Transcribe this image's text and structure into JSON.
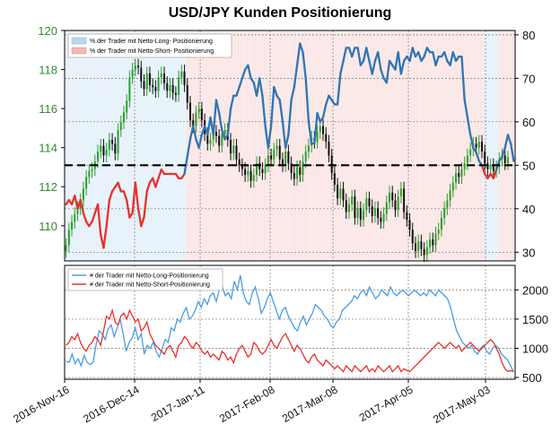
{
  "chart_data": [
    {
      "type": "line",
      "title": "USD/JPY Kunden Positionierung",
      "left_axis": {
        "ticks": [
          "110",
          "112",
          "114",
          "116",
          "118",
          "120"
        ],
        "ylim": [
          108.2,
          120
        ],
        "color": "#2e8b2e"
      },
      "right_axis": {
        "ticks": [
          "30",
          "40",
          "50",
          "60",
          "70",
          "80"
        ],
        "ylim": [
          28,
          81
        ]
      },
      "x_tick_labels": [
        "2016-Nov-16",
        "2016-Dec-14",
        "2017-Jan-11",
        "2017-Feb-08",
        "2017-Mar-08",
        "2017-Apr-05",
        "2017-May-03"
      ],
      "grid": true,
      "legend_position": "top-left",
      "reference_line": 50,
      "legend": [
        {
          "label": "% der Trader mit Netto-Long- Positionierung",
          "color": "#b8d8f0"
        },
        {
          "label": "% der Trader mit Netto-Short- Positionierung",
          "color": "#f4b8b8"
        }
      ],
      "series": [
        {
          "kind": "sentiment_pct",
          "color_long": "#2e75b6",
          "color_short": "#e8302a",
          "values": [
            41,
            42,
            41,
            43,
            40,
            42,
            39,
            37,
            36,
            37,
            39,
            41,
            34,
            31,
            36,
            42,
            44,
            45,
            46,
            44,
            44,
            42,
            38,
            39,
            46,
            40,
            36,
            38,
            44,
            46,
            47,
            45,
            47,
            49,
            48,
            48,
            48,
            48,
            48,
            47,
            47,
            48,
            52,
            56,
            59,
            56,
            54,
            57,
            59,
            57,
            61,
            57,
            65,
            62,
            58,
            56,
            57,
            63,
            66,
            66,
            68,
            70,
            72,
            73,
            70,
            69,
            66,
            70,
            66,
            59,
            54,
            59,
            68,
            66,
            65,
            60,
            54,
            57,
            65,
            68,
            73,
            78,
            76,
            70,
            60,
            55,
            55,
            62,
            60,
            61,
            64,
            66,
            65,
            64,
            64,
            71,
            74,
            77,
            77,
            75,
            77,
            77,
            73,
            74,
            77,
            74,
            71,
            74,
            76,
            72,
            70,
            69,
            74,
            73,
            72,
            76,
            71,
            74,
            75,
            74,
            77,
            75,
            76,
            74,
            75,
            77,
            76,
            76,
            73,
            75,
            75,
            76,
            74,
            73,
            76,
            74,
            75,
            75,
            65,
            61,
            57,
            54,
            53,
            51,
            50,
            48,
            47,
            48,
            47,
            49,
            51,
            52,
            54,
            57,
            55,
            51
          ]
        },
        {
          "kind": "price",
          "name": "USD/JPY",
          "values": [
            109.0,
            109.8,
            110.2,
            110.6,
            110.9,
            111.3,
            111.9,
            112.5,
            112.8,
            112.9,
            113.3,
            113.8,
            114.1,
            113.6,
            113.9,
            114.4,
            114.2,
            113.7,
            114.9,
            115.3,
            115.8,
            116.4,
            117.6,
            118.0,
            118.2,
            118.1,
            117.4,
            117.0,
            117.8,
            117.2,
            117.1,
            116.9,
            117.6,
            117.8,
            117.3,
            116.9,
            117.2,
            116.8,
            116.7,
            117.6,
            117.9,
            117.2,
            116.3,
            115.4,
            115.1,
            115.8,
            116.0,
            115.4,
            114.7,
            114.2,
            114.4,
            114.8,
            114.6,
            114.1,
            114.7,
            114.9,
            114.4,
            113.7,
            114.1,
            113.4,
            113.1,
            112.9,
            112.6,
            112.8,
            112.3,
            112.6,
            113.2,
            112.9,
            112.7,
            113.1,
            113.6,
            113.4,
            113.9,
            114.1,
            113.4,
            113.1,
            113.8,
            113.2,
            112.7,
            112.4,
            113.0,
            112.6,
            113.3,
            113.8,
            114.1,
            114.5,
            114.3,
            114.8,
            115.1,
            114.7,
            114.3,
            113.6,
            112.7,
            112.1,
            111.4,
            111.9,
            111.3,
            110.7,
            111.1,
            111.5,
            110.4,
            110.9,
            110.3,
            110.8,
            111.4,
            111.0,
            110.5,
            110.9,
            110.4,
            110.2,
            110.6,
            111.2,
            111.7,
            111.3,
            110.8,
            111.5,
            111.9,
            110.7,
            110.3,
            109.8,
            109.1,
            108.7,
            109.2,
            108.8,
            108.5,
            108.9,
            109.3,
            109.0,
            109.6,
            109.8,
            110.4,
            110.9,
            111.3,
            111.8,
            112.2,
            112.7,
            112.5,
            112.9,
            113.2,
            113.6,
            113.9,
            114.2,
            114.0,
            114.3,
            113.8,
            113.2,
            112.9,
            113.1,
            112.8,
            113.0,
            113.4,
            113.6,
            113.2,
            113.5
          ]
        }
      ]
    },
    {
      "type": "line",
      "y_axis": {
        "ticks": [
          "500",
          "1000",
          "1500",
          "2000"
        ],
        "ylim": [
          470,
          2420
        ]
      },
      "grid": true,
      "legend_position": "top-left",
      "series": [
        {
          "name": "# der Trader mit Netto-Long-Positionierung",
          "color": "#4a9de0",
          "values": [
            780,
            760,
            900,
            740,
            820,
            700,
            880,
            760,
            720,
            760,
            1070,
            1300,
            1250,
            1150,
            1330,
            1400,
            1200,
            1350,
            1500,
            1250,
            950,
            1100,
            1180,
            1350,
            1150,
            1250,
            900,
            1050,
            1000,
            1100,
            950,
            850,
            1000,
            1150,
            1100,
            1350,
            1300,
            1500,
            1450,
            1600,
            1700,
            1500,
            1550,
            1650,
            1800,
            1700,
            1850,
            1750,
            1900,
            1950,
            1800,
            2000,
            2050,
            1900,
            1950,
            1850,
            2150,
            2000,
            2250,
            1950,
            1800,
            1750,
            1950,
            2050,
            1850,
            1600,
            1700,
            1850,
            1950,
            1800,
            1650,
            1500,
            1650,
            1700,
            1550,
            1450,
            1350,
            1300,
            1450,
            1550,
            1400,
            1500,
            1600,
            1750,
            1700,
            1650,
            1550,
            1500,
            1400,
            1350,
            1450,
            1500,
            1650,
            1700,
            1750,
            1800,
            1900,
            1850,
            1950,
            2000,
            1900,
            2050,
            1950,
            1850,
            1900,
            2000,
            1950,
            1900,
            2050,
            1950,
            1900,
            1950,
            2000,
            1950,
            1900,
            1950,
            2000,
            1950,
            1900,
            1950,
            1900,
            2000,
            1950,
            1900,
            2000,
            1950,
            1900,
            1850,
            1700,
            1500,
            1300,
            1200,
            1100,
            1050,
            1000,
            1050,
            950,
            900,
            1000,
            1050,
            950,
            900,
            1000,
            1050,
            1000,
            900,
            850,
            800,
            700,
            600
          ]
        },
        {
          "name": "# der Trader mit Netto-Short-Positionierung",
          "color": "#e8302a",
          "values": [
            1050,
            1100,
            1200,
            1150,
            1250,
            1100,
            1000,
            950,
            1050,
            1100,
            1200,
            1150,
            1050,
            1300,
            1550,
            1500,
            1650,
            1450,
            1400,
            1550,
            1600,
            1500,
            1650,
            1550,
            1450,
            1500,
            1300,
            1350,
            1450,
            1250,
            1150,
            1050,
            1000,
            950,
            900,
            1000,
            1050,
            950,
            850,
            1050,
            1100,
            1200,
            1150,
            1050,
            1000,
            1100,
            1050,
            950,
            900,
            950,
            850,
            900,
            850,
            800,
            950,
            900,
            800,
            850,
            750,
            900,
            1000,
            1050,
            950,
            850,
            900,
            1100,
            1050,
            950,
            900,
            950,
            1050,
            1150,
            1050,
            1000,
            1100,
            1200,
            1250,
            1150,
            1050,
            950,
            1050,
            1000,
            900,
            800,
            750,
            850,
            900,
            800,
            750,
            700,
            800,
            750,
            700,
            650,
            700,
            650,
            600,
            700,
            650,
            600,
            700,
            650,
            600,
            650,
            700,
            600,
            650,
            600,
            700,
            650,
            600,
            650,
            700,
            600,
            650,
            700,
            600,
            650,
            620,
            600,
            650,
            700,
            750,
            800,
            850,
            900,
            950,
            1000,
            1050,
            1100,
            1050,
            1000,
            1050,
            1100,
            1050,
            1000,
            1050,
            950,
            1000,
            1050,
            1100,
            1050,
            1000,
            950,
            1000,
            1050,
            1100,
            1150,
            1100,
            1000,
            900,
            750,
            650,
            600,
            620,
            600
          ]
        }
      ]
    }
  ]
}
